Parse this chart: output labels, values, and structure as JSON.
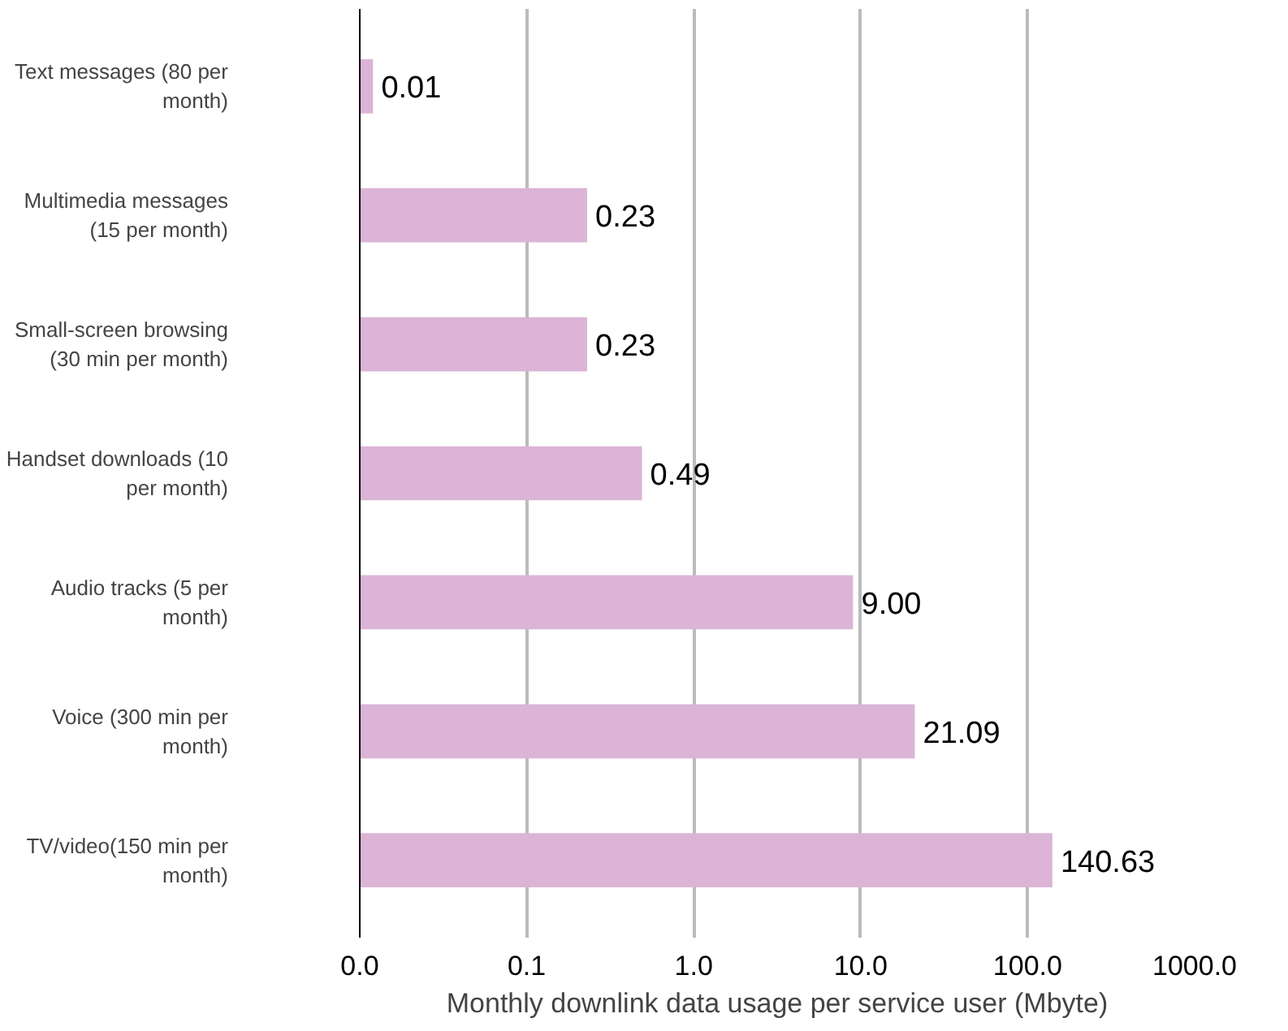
{
  "chart_data": {
    "type": "bar",
    "orientation": "horizontal",
    "log": "x",
    "categories": [
      "Text messages (80 per month)",
      "Multimedia messages (15 per month)",
      "Small-screen browsing (30 min per month)",
      "Handset downloads (10 per month)",
      "Audio tracks (5 per month)",
      "Voice (300 min per month)",
      "TV/video(150 min per month)"
    ],
    "values": [
      0.012,
      0.23,
      0.23,
      0.49,
      9.0,
      21.09,
      140.63
    ],
    "value_labels": [
      "0.01",
      "0.23",
      "0.23",
      "0.49",
      "9.00",
      "21.09",
      "140.63"
    ],
    "color": "#dbb4d6",
    "xlim": [
      0.01,
      1000
    ],
    "xticks": [
      {
        "value": 0.01,
        "label": "0.0"
      },
      {
        "value": 0.1,
        "label": "0.1"
      },
      {
        "value": 1,
        "label": "1.0"
      },
      {
        "value": 10,
        "label": "10.0"
      },
      {
        "value": 100,
        "label": "100.0"
      },
      {
        "value": 1000,
        "label": "1000.0"
      }
    ],
    "xlabel": "Monthly downlink data usage per service user (Mbyte)",
    "grid": "x"
  }
}
